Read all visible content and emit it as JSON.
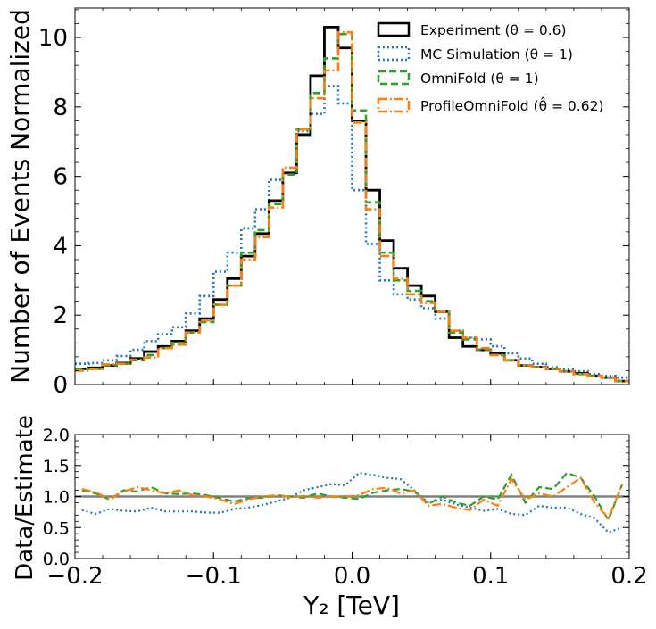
{
  "chart_data": [
    {
      "type": "line",
      "panel": "main",
      "ylabel": "Number of Events Normalized",
      "xlim": [
        -0.2,
        0.2
      ],
      "ylim": [
        0,
        10.85
      ],
      "yticks": [
        0,
        2,
        4,
        6,
        8,
        10
      ],
      "ytick_labels": [
        "0",
        "2",
        "4",
        "6",
        "8",
        "10"
      ],
      "legend_position": "top-right",
      "bin_edges": [
        -0.2,
        -0.19,
        -0.18,
        -0.17,
        -0.16,
        -0.15,
        -0.14,
        -0.13,
        -0.12,
        -0.11,
        -0.1,
        -0.09,
        -0.08,
        -0.07,
        -0.06,
        -0.05,
        -0.04,
        -0.03,
        -0.02,
        -0.01,
        0,
        0.01,
        0.02,
        0.03,
        0.04,
        0.05,
        0.06,
        0.07,
        0.08,
        0.09,
        0.1,
        0.11,
        0.12,
        0.13,
        0.14,
        0.15,
        0.16,
        0.17,
        0.18,
        0.19,
        0.2
      ],
      "series": [
        {
          "name": "Experiment (θ = 0.6)",
          "style": "solid",
          "color": "#000000",
          "values": [
            0.45,
            0.48,
            0.55,
            0.62,
            0.75,
            0.95,
            1.1,
            1.25,
            1.55,
            1.9,
            2.45,
            3.05,
            3.7,
            4.35,
            5.3,
            6.1,
            7.2,
            8.9,
            10.3,
            9.7,
            7.6,
            5.6,
            4.15,
            3.35,
            2.85,
            2.55,
            2.1,
            1.35,
            1.1,
            1.0,
            0.9,
            0.7,
            0.55,
            0.5,
            0.45,
            0.38,
            0.32,
            0.25,
            0.2,
            0.1
          ]
        },
        {
          "name": "MC Simulation (θ = 1)",
          "style": "dotted",
          "color": "#1f77b4",
          "values": [
            0.6,
            0.62,
            0.7,
            0.82,
            1.0,
            1.25,
            1.45,
            1.65,
            2.05,
            2.55,
            3.25,
            3.8,
            4.5,
            5.05,
            5.9,
            6.25,
            7.3,
            7.8,
            8.6,
            8.1,
            5.6,
            4.05,
            3.0,
            2.6,
            2.45,
            2.2,
            1.9,
            1.55,
            1.35,
            1.3,
            1.1,
            0.9,
            0.75,
            0.6,
            0.5,
            0.45,
            0.38,
            0.3,
            0.25,
            0.2
          ]
        },
        {
          "name": "OmniFold (θ = 1)",
          "style": "dashed",
          "color": "#2ca02c",
          "values": [
            0.45,
            0.45,
            0.55,
            0.6,
            0.7,
            0.85,
            1.05,
            1.2,
            1.5,
            1.8,
            2.3,
            2.85,
            3.8,
            4.45,
            5.2,
            6.05,
            7.35,
            8.4,
            9.4,
            10.1,
            7.9,
            5.25,
            3.8,
            3.0,
            2.7,
            2.4,
            2.1,
            1.5,
            1.3,
            1.0,
            0.85,
            0.7,
            0.55,
            0.5,
            0.45,
            0.38,
            0.3,
            0.25,
            0.2,
            0.1
          ]
        },
        {
          "name": "ProfileOmniFold (θ̂ = 0.62)",
          "style": "dashdot",
          "color": "#ff7f0e",
          "values": [
            0.4,
            0.45,
            0.58,
            0.6,
            0.72,
            0.78,
            1.05,
            1.15,
            1.5,
            1.85,
            2.3,
            2.85,
            3.6,
            4.25,
            5.1,
            6.25,
            7.35,
            8.25,
            9.05,
            10.15,
            7.55,
            5.05,
            3.7,
            3.05,
            2.6,
            2.35,
            2.1,
            1.55,
            1.35,
            1.05,
            0.85,
            0.7,
            0.55,
            0.5,
            0.45,
            0.38,
            0.3,
            0.25,
            0.2,
            0.1
          ]
        }
      ],
      "legend": [
        "Experiment (θ = 0.6)",
        "MC Simulation (θ = 1)",
        "OmniFold (θ = 1)",
        "ProfileOmniFold (θ̂ = 0.62)"
      ]
    },
    {
      "type": "line",
      "panel": "ratio",
      "ylabel": "Data/Estimate",
      "xlabel": "Y₂ [TeV]",
      "xlim": [
        -0.2,
        0.2
      ],
      "ylim": [
        0,
        2.0
      ],
      "yticks": [
        0.0,
        0.5,
        1.0,
        1.5,
        2.0
      ],
      "ytick_labels": [
        "0.0",
        "0.5",
        "1.0",
        "1.5",
        "2.0"
      ],
      "xticks": [
        -0.2,
        -0.1,
        0.0,
        0.1,
        0.2
      ],
      "xtick_labels": [
        "−0.2",
        "−0.1",
        "0.0",
        "0.1",
        "0.2"
      ],
      "reference_line": 1.0,
      "x": [
        -0.195,
        -0.185,
        -0.175,
        -0.165,
        -0.155,
        -0.145,
        -0.135,
        -0.125,
        -0.115,
        -0.105,
        -0.095,
        -0.085,
        -0.075,
        -0.065,
        -0.055,
        -0.045,
        -0.035,
        -0.025,
        -0.015,
        -0.005,
        0.005,
        0.015,
        0.025,
        0.035,
        0.045,
        0.055,
        0.065,
        0.075,
        0.085,
        0.095,
        0.105,
        0.115,
        0.125,
        0.135,
        0.145,
        0.155,
        0.165,
        0.175,
        0.185,
        0.195
      ],
      "series": [
        {
          "name": "MC Simulation",
          "style": "dotted",
          "color": "#1f77b4",
          "values": [
            0.78,
            0.72,
            0.8,
            0.77,
            0.76,
            0.82,
            0.76,
            0.76,
            0.76,
            0.74,
            0.74,
            0.8,
            0.82,
            0.86,
            0.92,
            0.98,
            1.1,
            1.15,
            1.2,
            1.18,
            1.38,
            1.35,
            1.3,
            1.28,
            1.1,
            0.9,
            0.95,
            0.87,
            0.82,
            0.77,
            0.8,
            0.72,
            0.7,
            0.85,
            0.82,
            0.82,
            0.72,
            0.65,
            0.42,
            0.5
          ]
        },
        {
          "name": "OmniFold",
          "style": "dashed",
          "color": "#2ca02c",
          "values": [
            1.1,
            1.05,
            0.95,
            1.1,
            1.08,
            1.15,
            1.05,
            1.04,
            1.05,
            1.02,
            0.97,
            0.92,
            0.97,
            0.98,
            1.02,
            1.0,
            0.98,
            1.05,
            1.0,
            0.98,
            0.96,
            1.06,
            1.1,
            1.12,
            1.08,
            0.88,
            1.0,
            0.9,
            0.85,
            1.0,
            0.95,
            1.35,
            0.9,
            1.15,
            1.12,
            1.38,
            1.3,
            1.0,
            0.62,
            1.2
          ]
        },
        {
          "name": "ProfileOmniFold",
          "style": "dashdot",
          "color": "#ff7f0e",
          "values": [
            1.12,
            1.07,
            0.95,
            1.08,
            1.15,
            1.1,
            1.05,
            1.1,
            1.02,
            1.0,
            0.95,
            0.88,
            0.95,
            1.0,
            1.02,
            0.99,
            1.01,
            0.98,
            1.0,
            1.0,
            1.02,
            1.12,
            1.14,
            1.05,
            1.1,
            0.85,
            0.88,
            0.82,
            0.78,
            0.95,
            0.85,
            1.28,
            0.95,
            1.05,
            1.0,
            1.15,
            1.3,
            0.9,
            0.65,
            1.2
          ]
        }
      ]
    }
  ],
  "colors": {
    "reference_line": "#808080"
  }
}
